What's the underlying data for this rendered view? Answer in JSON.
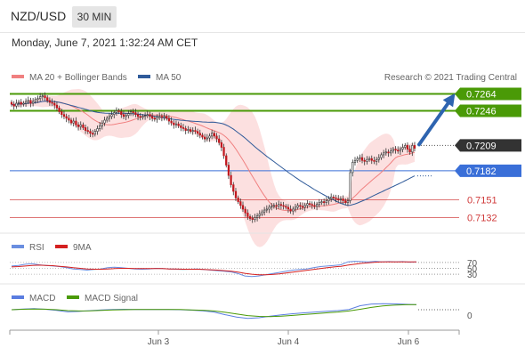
{
  "header": {
    "pair": "NZD/USD",
    "timeframe": "30 MIN"
  },
  "datetime": "Monday, June 7, 2021 1:32:24 AM CET",
  "legend": {
    "bollinger": "MA 20 + Bollinger Bands",
    "ma50": "MA 50",
    "source": "Research © 2021 Trading Central"
  },
  "colors": {
    "up_candle": "#ffffff",
    "down_candle": "#c0161d",
    "resistance": "#4a9a07",
    "current": "#333333",
    "support_blue": "#3a6fd8",
    "support_red": "#d03a3a",
    "ma50": "#305b9a",
    "ma20": "#f08080",
    "band_fill": "#fbd6d6",
    "rsi": "#6a8ee0",
    "rsi_ma": "#d42020",
    "macd": "#5a7de0",
    "macd_signal": "#4a9a07"
  },
  "chart_data": [
    {
      "type": "candlestick",
      "title": "NZD/USD",
      "ylim": [
        0.7122,
        0.7274
      ],
      "levels": [
        {
          "value": 0.7264,
          "label": "0.7264",
          "kind": "resistance"
        },
        {
          "value": 0.7246,
          "label": "0.7246",
          "kind": "resistance"
        },
        {
          "value": 0.7209,
          "label": "0.7209",
          "kind": "current"
        },
        {
          "value": 0.7182,
          "label": "0.7182",
          "kind": "support"
        },
        {
          "value": 0.7151,
          "label": "0.7151",
          "kind": "support-minor"
        },
        {
          "value": 0.7132,
          "label": "0.7132",
          "kind": "support-minor"
        }
      ],
      "close": [
        0.7253,
        0.7251,
        0.7254,
        0.7255,
        0.7253,
        0.7254,
        0.7256,
        0.7257,
        0.7254,
        0.7256,
        0.7258,
        0.7259,
        0.7261,
        0.7262,
        0.726,
        0.7257,
        0.7255,
        0.7254,
        0.7252,
        0.7249,
        0.7245,
        0.7242,
        0.724,
        0.7238,
        0.7236,
        0.7233,
        0.7235,
        0.7231,
        0.7229,
        0.7231,
        0.7228,
        0.7225,
        0.7224,
        0.7222,
        0.7221,
        0.7224,
        0.7227,
        0.723,
        0.7233,
        0.7236,
        0.7238,
        0.724,
        0.7242,
        0.7244,
        0.7246,
        0.7245,
        0.7242,
        0.724,
        0.7241,
        0.7243,
        0.7245,
        0.7244,
        0.7242,
        0.724,
        0.7239,
        0.724,
        0.7241,
        0.7242,
        0.724,
        0.7238,
        0.7237,
        0.7239,
        0.724,
        0.7239,
        0.724,
        0.7238,
        0.7235,
        0.7233,
        0.7231,
        0.7232,
        0.723,
        0.7228,
        0.7227,
        0.7225,
        0.7226,
        0.7224,
        0.7225,
        0.7224,
        0.7222,
        0.722,
        0.7218,
        0.7216,
        0.7217,
        0.7219,
        0.7222,
        0.7219,
        0.7216,
        0.7212,
        0.7207,
        0.7198,
        0.7188,
        0.7177,
        0.7167,
        0.716,
        0.7153,
        0.7149,
        0.7145,
        0.7141,
        0.7137,
        0.7133,
        0.7131,
        0.713,
        0.7132,
        0.7134,
        0.7136,
        0.7138,
        0.714,
        0.7141,
        0.7143,
        0.7144,
        0.7145,
        0.7144,
        0.7146,
        0.7145,
        0.7144,
        0.7143,
        0.7141,
        0.7139,
        0.7141,
        0.7143,
        0.7145,
        0.7144,
        0.7143,
        0.7145,
        0.7147,
        0.7146,
        0.7145,
        0.7144,
        0.7146,
        0.7148,
        0.7149,
        0.7148,
        0.715,
        0.7152,
        0.7154,
        0.7153,
        0.7152,
        0.7151,
        0.7152,
        0.715,
        0.7148,
        0.715,
        0.718,
        0.7191,
        0.7193,
        0.7195,
        0.7196,
        0.7193,
        0.7192,
        0.7194,
        0.7195,
        0.7193,
        0.7192,
        0.7194,
        0.7196,
        0.7199,
        0.7201,
        0.7202,
        0.7201,
        0.7203,
        0.7205,
        0.7204,
        0.7203,
        0.7205,
        0.7207,
        0.7209,
        0.7205,
        0.7202,
        0.7209,
        0.7206
      ]
    },
    {
      "type": "line",
      "title": "RSI",
      "series_names": [
        "RSI",
        "9MA"
      ],
      "levels": [
        70,
        50,
        30
      ],
      "rsi": [
        58,
        60,
        64,
        66,
        62,
        60,
        58,
        56,
        52,
        48,
        46,
        44,
        46,
        48,
        52,
        54,
        52,
        50,
        48,
        47,
        48,
        50,
        49,
        48,
        47,
        46,
        47,
        48,
        46,
        44,
        42,
        40,
        38,
        32,
        24,
        22,
        24,
        28,
        32,
        36,
        40,
        44,
        46,
        48,
        52,
        56,
        58,
        60,
        62,
        72,
        74,
        73,
        72,
        74,
        72,
        73,
        72,
        73,
        71,
        72
      ],
      "rsi_ma": [
        55,
        56,
        58,
        60,
        61,
        60,
        59,
        57,
        55,
        52,
        50,
        48,
        47,
        47,
        48,
        49,
        50,
        50,
        49,
        49,
        49,
        49,
        49,
        48,
        48,
        47,
        47,
        47,
        46,
        45,
        44,
        42,
        40,
        37,
        33,
        30,
        28,
        28,
        29,
        31,
        34,
        37,
        40,
        43,
        46,
        49,
        52,
        55,
        57,
        61,
        64,
        67,
        69,
        71,
        72,
        72,
        72,
        72,
        72,
        72
      ]
    },
    {
      "type": "line",
      "title": "MACD",
      "series_names": [
        "MACD",
        "MACD Signal"
      ],
      "zero_label": "0",
      "x_ticks": [
        "Jun 3",
        "Jun 4",
        "Jun 6"
      ],
      "macd": [
        0,
        0.5,
        0.8,
        0.3,
        -0.5,
        -1.5,
        -1.2,
        -0.6,
        -0.2,
        0.2,
        0.3,
        0.2,
        0.1,
        0.2,
        0.1,
        0,
        -0.3,
        -0.8,
        -1.6,
        -3.5,
        -5.2,
        -6.1,
        -5.6,
        -4.5,
        -3.6,
        -2.8,
        -2.2,
        -1.6,
        -1.1,
        -0.6,
        0.2,
        2.8,
        4.0,
        4.2,
        4.1,
        3.8,
        3.5
      ],
      "macd_signal": [
        0,
        0.3,
        0.5,
        0.4,
        0,
        -0.6,
        -0.9,
        -0.8,
        -0.5,
        -0.2,
        0,
        0.1,
        0.1,
        0.1,
        0.1,
        0.1,
        -0.1,
        -0.4,
        -0.9,
        -1.8,
        -3.0,
        -4.1,
        -4.7,
        -4.8,
        -4.5,
        -4.0,
        -3.4,
        -2.8,
        -2.2,
        -1.6,
        -0.9,
        0.3,
        1.6,
        2.6,
        3.2,
        3.5,
        3.6
      ]
    }
  ]
}
